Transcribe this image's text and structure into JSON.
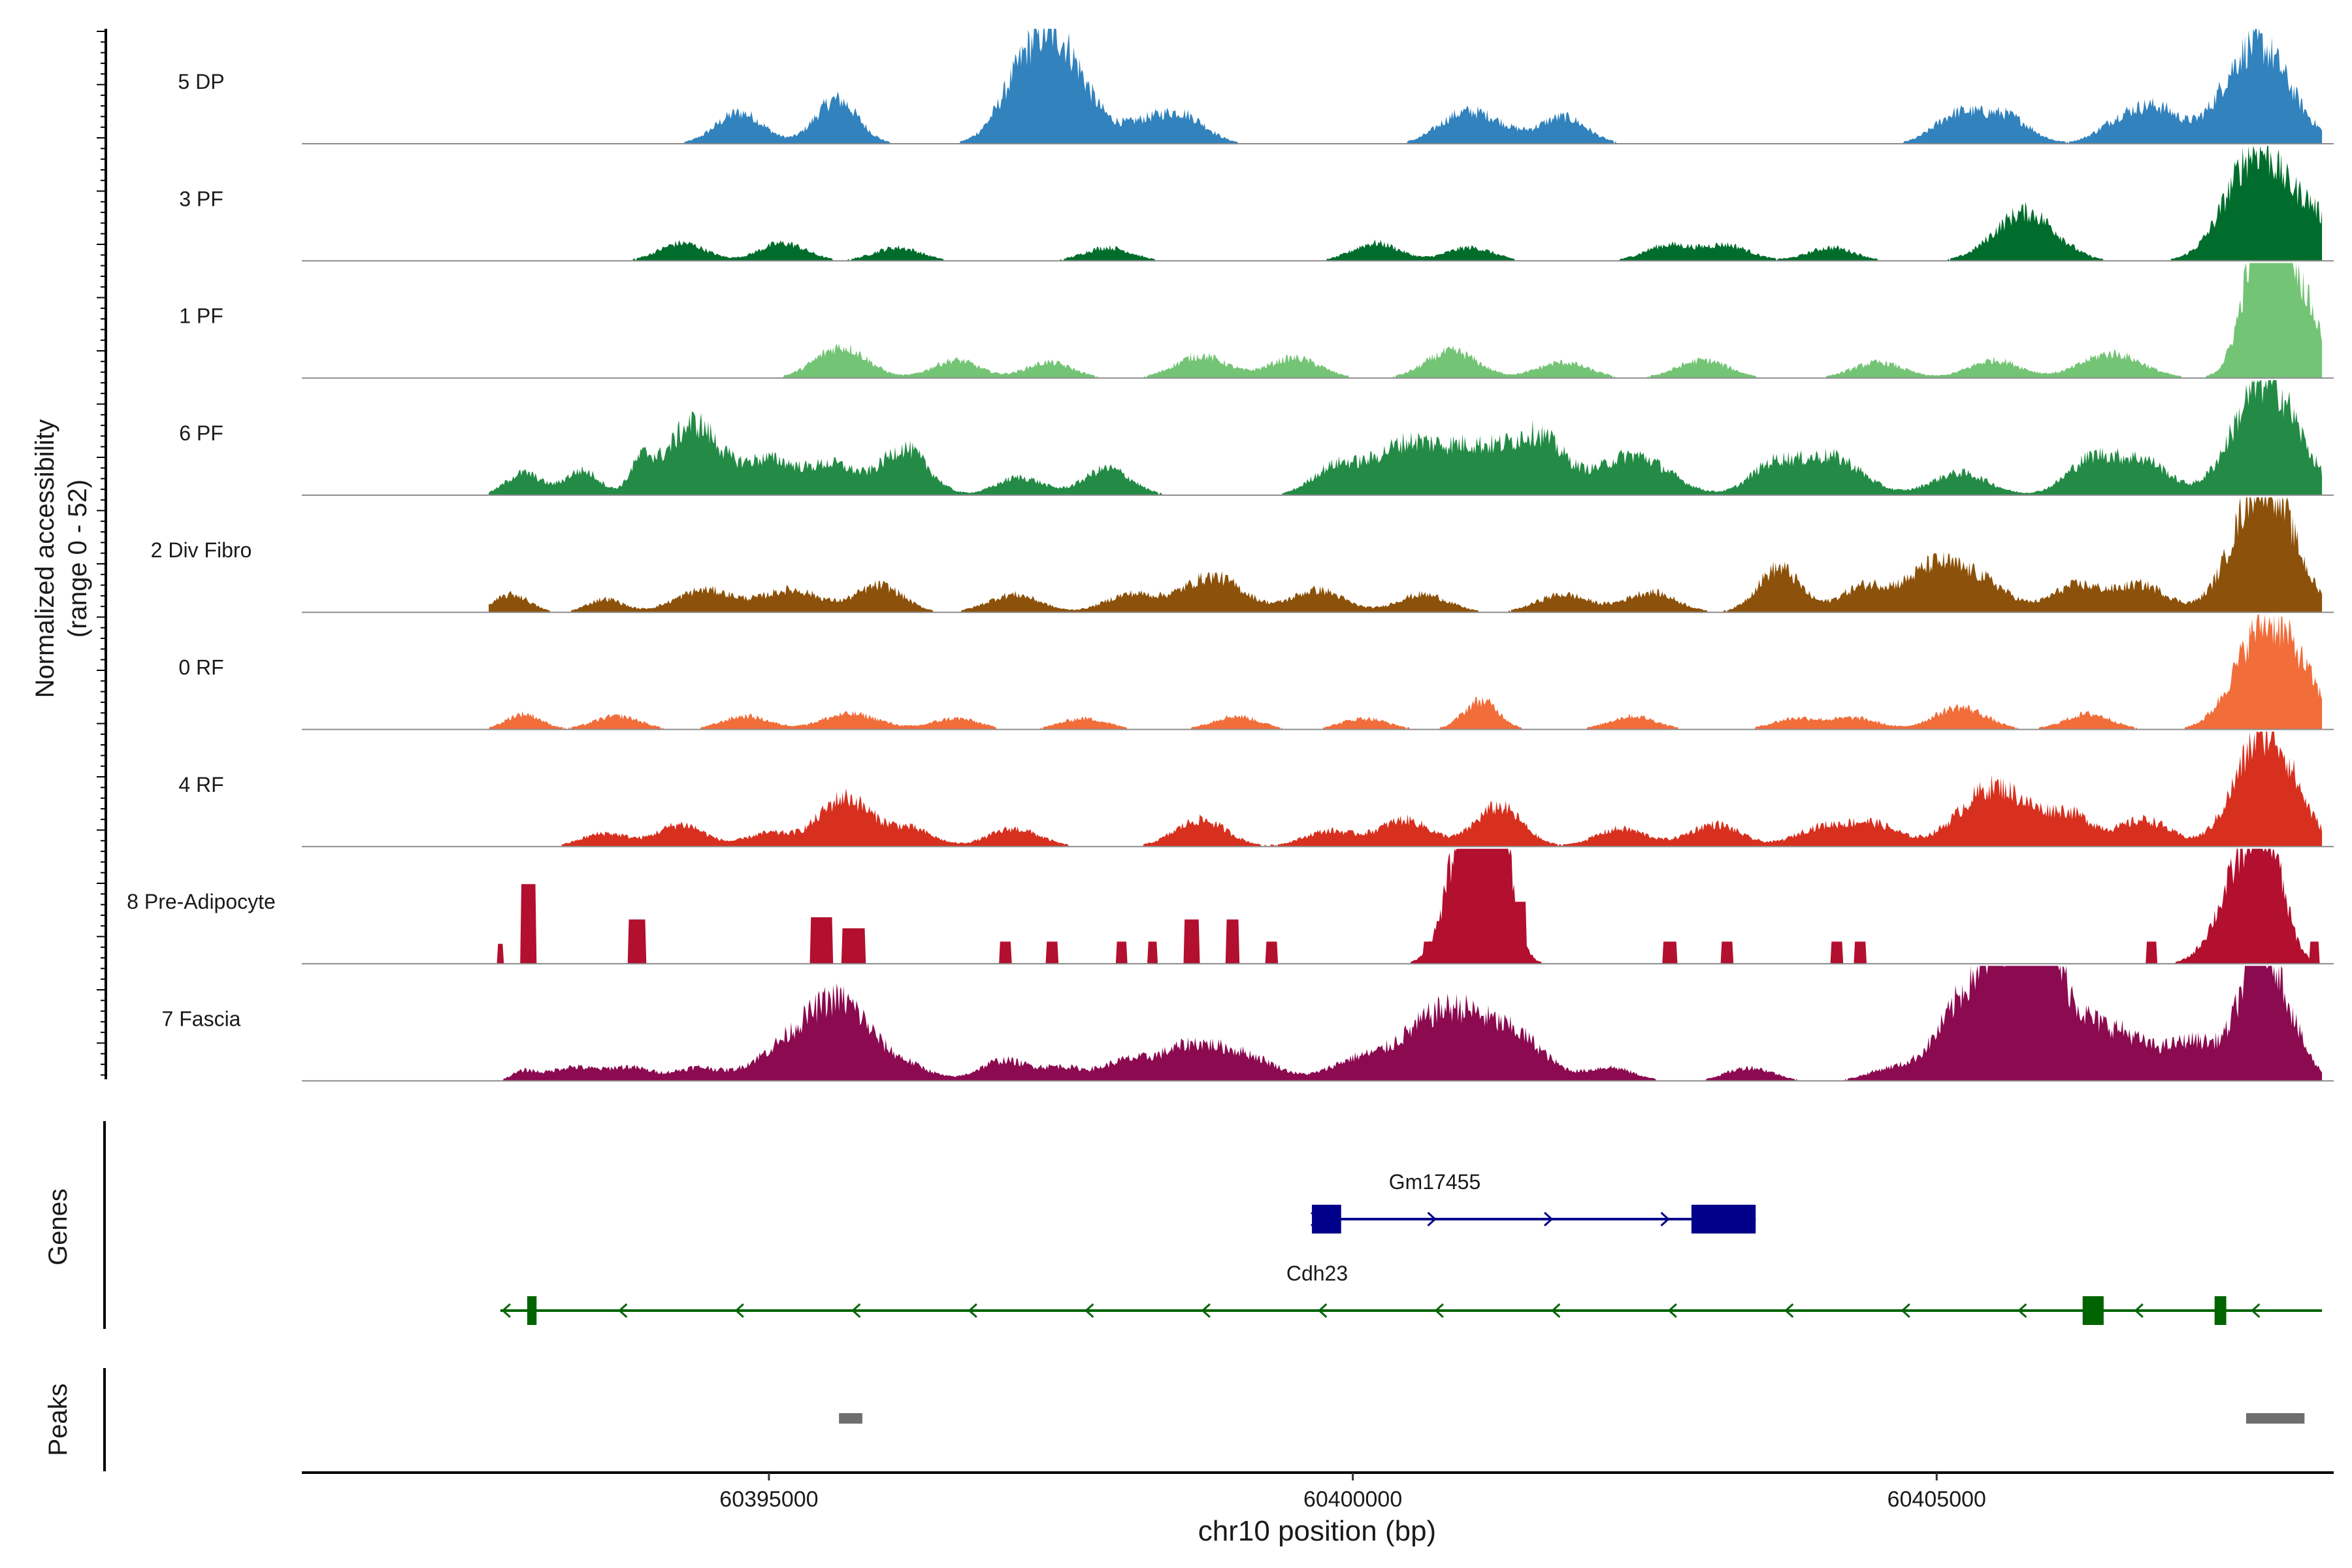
{
  "chart_data": {
    "type": "area",
    "title": "",
    "ylabel": "Normalized accessibility",
    "ylabel_range": "(range 0 - 52)",
    "xlabel": "chr10 position (bp)",
    "xlim": [
      60391000,
      60408400
    ],
    "ylim": [
      0,
      52
    ],
    "region_start": 60392600,
    "region_end": 60408300,
    "xticks": [
      60395000,
      60400000,
      60405000
    ],
    "xtick_labels": [
      "60395000",
      "60400000",
      "60405000"
    ],
    "tracks": [
      {
        "name": "5 DP",
        "color": "#3182bd",
        "peaks": [
          [
            60394750,
            14,
            200
          ],
          [
            60395580,
            20,
            180
          ],
          [
            60397450,
            46,
            260
          ],
          [
            60397130,
            14,
            200
          ],
          [
            60398550,
            12,
            200
          ],
          [
            60398200,
            8,
            200
          ],
          [
            60400900,
            11,
            200
          ],
          [
            60401200,
            8,
            200
          ],
          [
            60401800,
            12,
            200
          ],
          [
            60405180,
            13,
            200
          ],
          [
            60405600,
            12,
            200
          ],
          [
            60406600,
            11,
            200
          ],
          [
            60406920,
            13,
            180
          ],
          [
            60407740,
            45,
            280
          ]
        ]
      },
      {
        "name": "3 PF",
        "color": "#006d2c",
        "peaks": [
          [
            60394260,
            8,
            200
          ],
          [
            60395120,
            8,
            200
          ],
          [
            60396100,
            6,
            200
          ],
          [
            60397900,
            6,
            200
          ],
          [
            60400200,
            8,
            200
          ],
          [
            60401000,
            6,
            200
          ],
          [
            60402700,
            7,
            200
          ],
          [
            60403200,
            7,
            200
          ],
          [
            60404100,
            6,
            200
          ],
          [
            60405760,
            22,
            260
          ],
          [
            60407750,
            50,
            260
          ],
          [
            60408230,
            16,
            150
          ]
        ]
      },
      {
        "name": "1 PF",
        "color": "#74c476",
        "peaks": [
          [
            60395620,
            14,
            220
          ],
          [
            60396600,
            8,
            200
          ],
          [
            60397400,
            7,
            200
          ],
          [
            60398700,
            10,
            220
          ],
          [
            60399500,
            9,
            220
          ],
          [
            60400850,
            12,
            220
          ],
          [
            60401800,
            7,
            220
          ],
          [
            60403000,
            8,
            220
          ],
          [
            60404500,
            7,
            220
          ],
          [
            60405500,
            8,
            220
          ],
          [
            60406500,
            11,
            260
          ],
          [
            60407820,
            75,
            170
          ],
          [
            60408050,
            22,
            150
          ],
          [
            60408230,
            14,
            150
          ]
        ]
      },
      {
        "name": "6 PF",
        "color": "#238b45",
        "peaks": [
          [
            60392900,
            10,
            150
          ],
          [
            60393400,
            11,
            150
          ],
          [
            60393910,
            14,
            100
          ],
          [
            60394350,
            32,
            220
          ],
          [
            60395000,
            16,
            240
          ],
          [
            60395560,
            13,
            200
          ],
          [
            60396160,
            21,
            200
          ],
          [
            60397150,
            8,
            200
          ],
          [
            60397900,
            12,
            200
          ],
          [
            60399850,
            12,
            200
          ],
          [
            60400450,
            22,
            280
          ],
          [
            60401060,
            20,
            280
          ],
          [
            60401600,
            24,
            220
          ],
          [
            60402400,
            18,
            300
          ],
          [
            60403600,
            13,
            200
          ],
          [
            60404100,
            17,
            260
          ],
          [
            60405200,
            10,
            240
          ],
          [
            60406350,
            17,
            220
          ],
          [
            60406800,
            14,
            200
          ],
          [
            60407820,
            52,
            270
          ]
        ]
      },
      {
        "name": "2 Div Fibro",
        "color": "#8c510a",
        "peaks": [
          [
            60392800,
            8,
            150
          ],
          [
            60393600,
            6,
            150
          ],
          [
            60394450,
            10,
            250
          ],
          [
            60395200,
            10,
            250
          ],
          [
            60395950,
            12,
            200
          ],
          [
            60397100,
            8,
            220
          ],
          [
            60398100,
            8,
            220
          ],
          [
            60398800,
            16,
            260
          ],
          [
            60399700,
            10,
            220
          ],
          [
            60400600,
            8,
            220
          ],
          [
            60401800,
            8,
            220
          ],
          [
            60402550,
            9,
            220
          ],
          [
            60403650,
            20,
            180
          ],
          [
            60404400,
            12,
            220
          ],
          [
            60404980,
            20,
            220
          ],
          [
            60405400,
            13,
            220
          ],
          [
            60406200,
            12,
            220
          ],
          [
            60406760,
            12,
            220
          ],
          [
            60407800,
            60,
            250
          ]
        ]
      },
      {
        "name": "0 RF",
        "color": "#f16d3a",
        "peaks": [
          [
            60392900,
            7,
            150
          ],
          [
            60393700,
            6,
            200
          ],
          [
            60394800,
            6,
            200
          ],
          [
            60395700,
            7,
            250
          ],
          [
            60396600,
            5,
            200
          ],
          [
            60397700,
            5,
            200
          ],
          [
            60399000,
            6,
            200
          ],
          [
            60400100,
            5,
            200
          ],
          [
            60401100,
            13,
            150
          ],
          [
            60402400,
            6,
            200
          ],
          [
            60403800,
            5,
            200
          ],
          [
            60404300,
            5,
            200
          ],
          [
            60405200,
            10,
            220
          ],
          [
            60406300,
            7,
            200
          ],
          [
            60407820,
            48,
            250
          ],
          [
            60408170,
            10,
            150
          ]
        ]
      },
      {
        "name": "4 RF",
        "color": "#d7301f",
        "peaks": [
          [
            60393600,
            6,
            200
          ],
          [
            60394250,
            10,
            200
          ],
          [
            60395000,
            6,
            200
          ],
          [
            60395650,
            22,
            220
          ],
          [
            60396200,
            8,
            200
          ],
          [
            60397100,
            8,
            220
          ],
          [
            60398700,
            12,
            220
          ],
          [
            60399800,
            7,
            220
          ],
          [
            60400450,
            12,
            220
          ],
          [
            60401250,
            18,
            200
          ],
          [
            60402300,
            8,
            220
          ],
          [
            60403100,
            10,
            220
          ],
          [
            60404000,
            8,
            220
          ],
          [
            60404450,
            10,
            220
          ],
          [
            60405500,
            27,
            300
          ],
          [
            60406150,
            13,
            200
          ],
          [
            60406780,
            12,
            220
          ],
          [
            60407820,
            52,
            250
          ]
        ]
      },
      {
        "name": "8 Pre-Adipocyte",
        "color": "#b30f2e",
        "blocks": [
          [
            60392680,
            60392720,
            9
          ],
          [
            60392880,
            60393000,
            36
          ],
          [
            60393800,
            60393940,
            20
          ],
          [
            60395360,
            60395540,
            21
          ],
          [
            60395630,
            60395820,
            16
          ],
          [
            60396980,
            60397070,
            10
          ],
          [
            60397380,
            60397470,
            10
          ],
          [
            60397980,
            60398060,
            10
          ],
          [
            60398250,
            60398320,
            10
          ],
          [
            60398560,
            60398680,
            20
          ],
          [
            60398920,
            60399020,
            20
          ],
          [
            60399260,
            60399350,
            10
          ],
          [
            60400610,
            60400680,
            10
          ],
          [
            60400920,
            60401480,
            28
          ],
          [
            60402660,
            60402770,
            10
          ],
          [
            60403160,
            60403250,
            10
          ],
          [
            60404100,
            60404190,
            10
          ],
          [
            60404300,
            60404390,
            10
          ],
          [
            60406800,
            60406880,
            10
          ],
          [
            60407300,
            60407820,
            10
          ],
          [
            60408200,
            60408270,
            10
          ]
        ],
        "peaks": [
          [
            60401040,
            84,
            180
          ],
          [
            60401230,
            44,
            120
          ],
          [
            60407600,
            38,
            200
          ],
          [
            60407830,
            42,
            150
          ]
        ]
      },
      {
        "name": "7 Fascia",
        "color": "#8b0a50",
        "peaks": [
          [
            60392900,
            4,
            100
          ],
          [
            60393300,
            6,
            200
          ],
          [
            60393800,
            6,
            200
          ],
          [
            60394400,
            6,
            200
          ],
          [
            60394920,
            6,
            180
          ],
          [
            60395220,
            12,
            200
          ],
          [
            60395620,
            35,
            260
          ],
          [
            60396200,
            6,
            200
          ],
          [
            60397000,
            9,
            200
          ],
          [
            60397500,
            6,
            200
          ],
          [
            60398050,
            8,
            200
          ],
          [
            60398600,
            15,
            260
          ],
          [
            60399100,
            10,
            260
          ],
          [
            60400000,
            8,
            220
          ],
          [
            60400550,
            16,
            280
          ],
          [
            60400950,
            25,
            280
          ],
          [
            60401440,
            16,
            240
          ],
          [
            60402200,
            6,
            200
          ],
          [
            60403400,
            6,
            200
          ],
          [
            60404600,
            5,
            200
          ],
          [
            60405100,
            8,
            200
          ],
          [
            60405550,
            56,
            330
          ],
          [
            60405880,
            38,
            180
          ],
          [
            60406300,
            20,
            260
          ],
          [
            60406650,
            11,
            200
          ],
          [
            60407200,
            18,
            260
          ],
          [
            60407780,
            60,
            170
          ],
          [
            60408050,
            13,
            160
          ]
        ]
      }
    ],
    "genes": [
      {
        "name": "Gm17455",
        "strand": "+",
        "color": "#00008b",
        "start": 60399650,
        "end": 60403450,
        "exons": [
          [
            60399650,
            60399900
          ],
          [
            60402900,
            60403450
          ]
        ]
      },
      {
        "name": "Cdh23",
        "strand": "-",
        "color": "#006400",
        "start": 60392700,
        "end": 60408300,
        "exons": [
          [
            60392930,
            60393010
          ],
          [
            60406250,
            60406430
          ],
          [
            60407380,
            60407480
          ]
        ]
      }
    ],
    "peak_regions": [
      [
        60395600,
        60395800
      ],
      [
        60407650,
        60408150
      ]
    ],
    "annotation_labels": {
      "genes": "Genes",
      "peaks": "Peaks"
    }
  }
}
